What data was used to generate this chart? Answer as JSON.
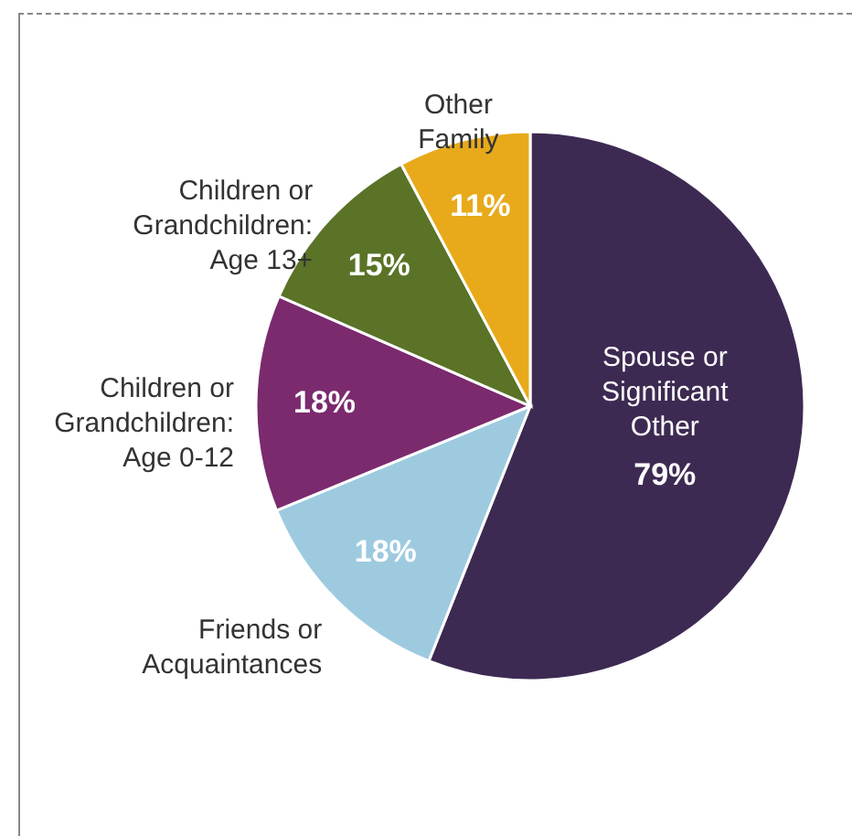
{
  "chart_data": {
    "type": "pie",
    "categories": [
      "Spouse or Significant Other",
      "Friends or Acquaintances",
      "Children or Grandchildren: Age 0-12",
      "Children or Grandchildren: Age 13+",
      "Other Family"
    ],
    "values": [
      79,
      18,
      18,
      15,
      11
    ],
    "value_labels": [
      "79%",
      "18%",
      "18%",
      "15%",
      "11%"
    ],
    "colors": [
      "#3d2a52",
      "#9ecae0",
      "#7b2a6e",
      "#5a7327",
      "#e8aa1a"
    ]
  }
}
